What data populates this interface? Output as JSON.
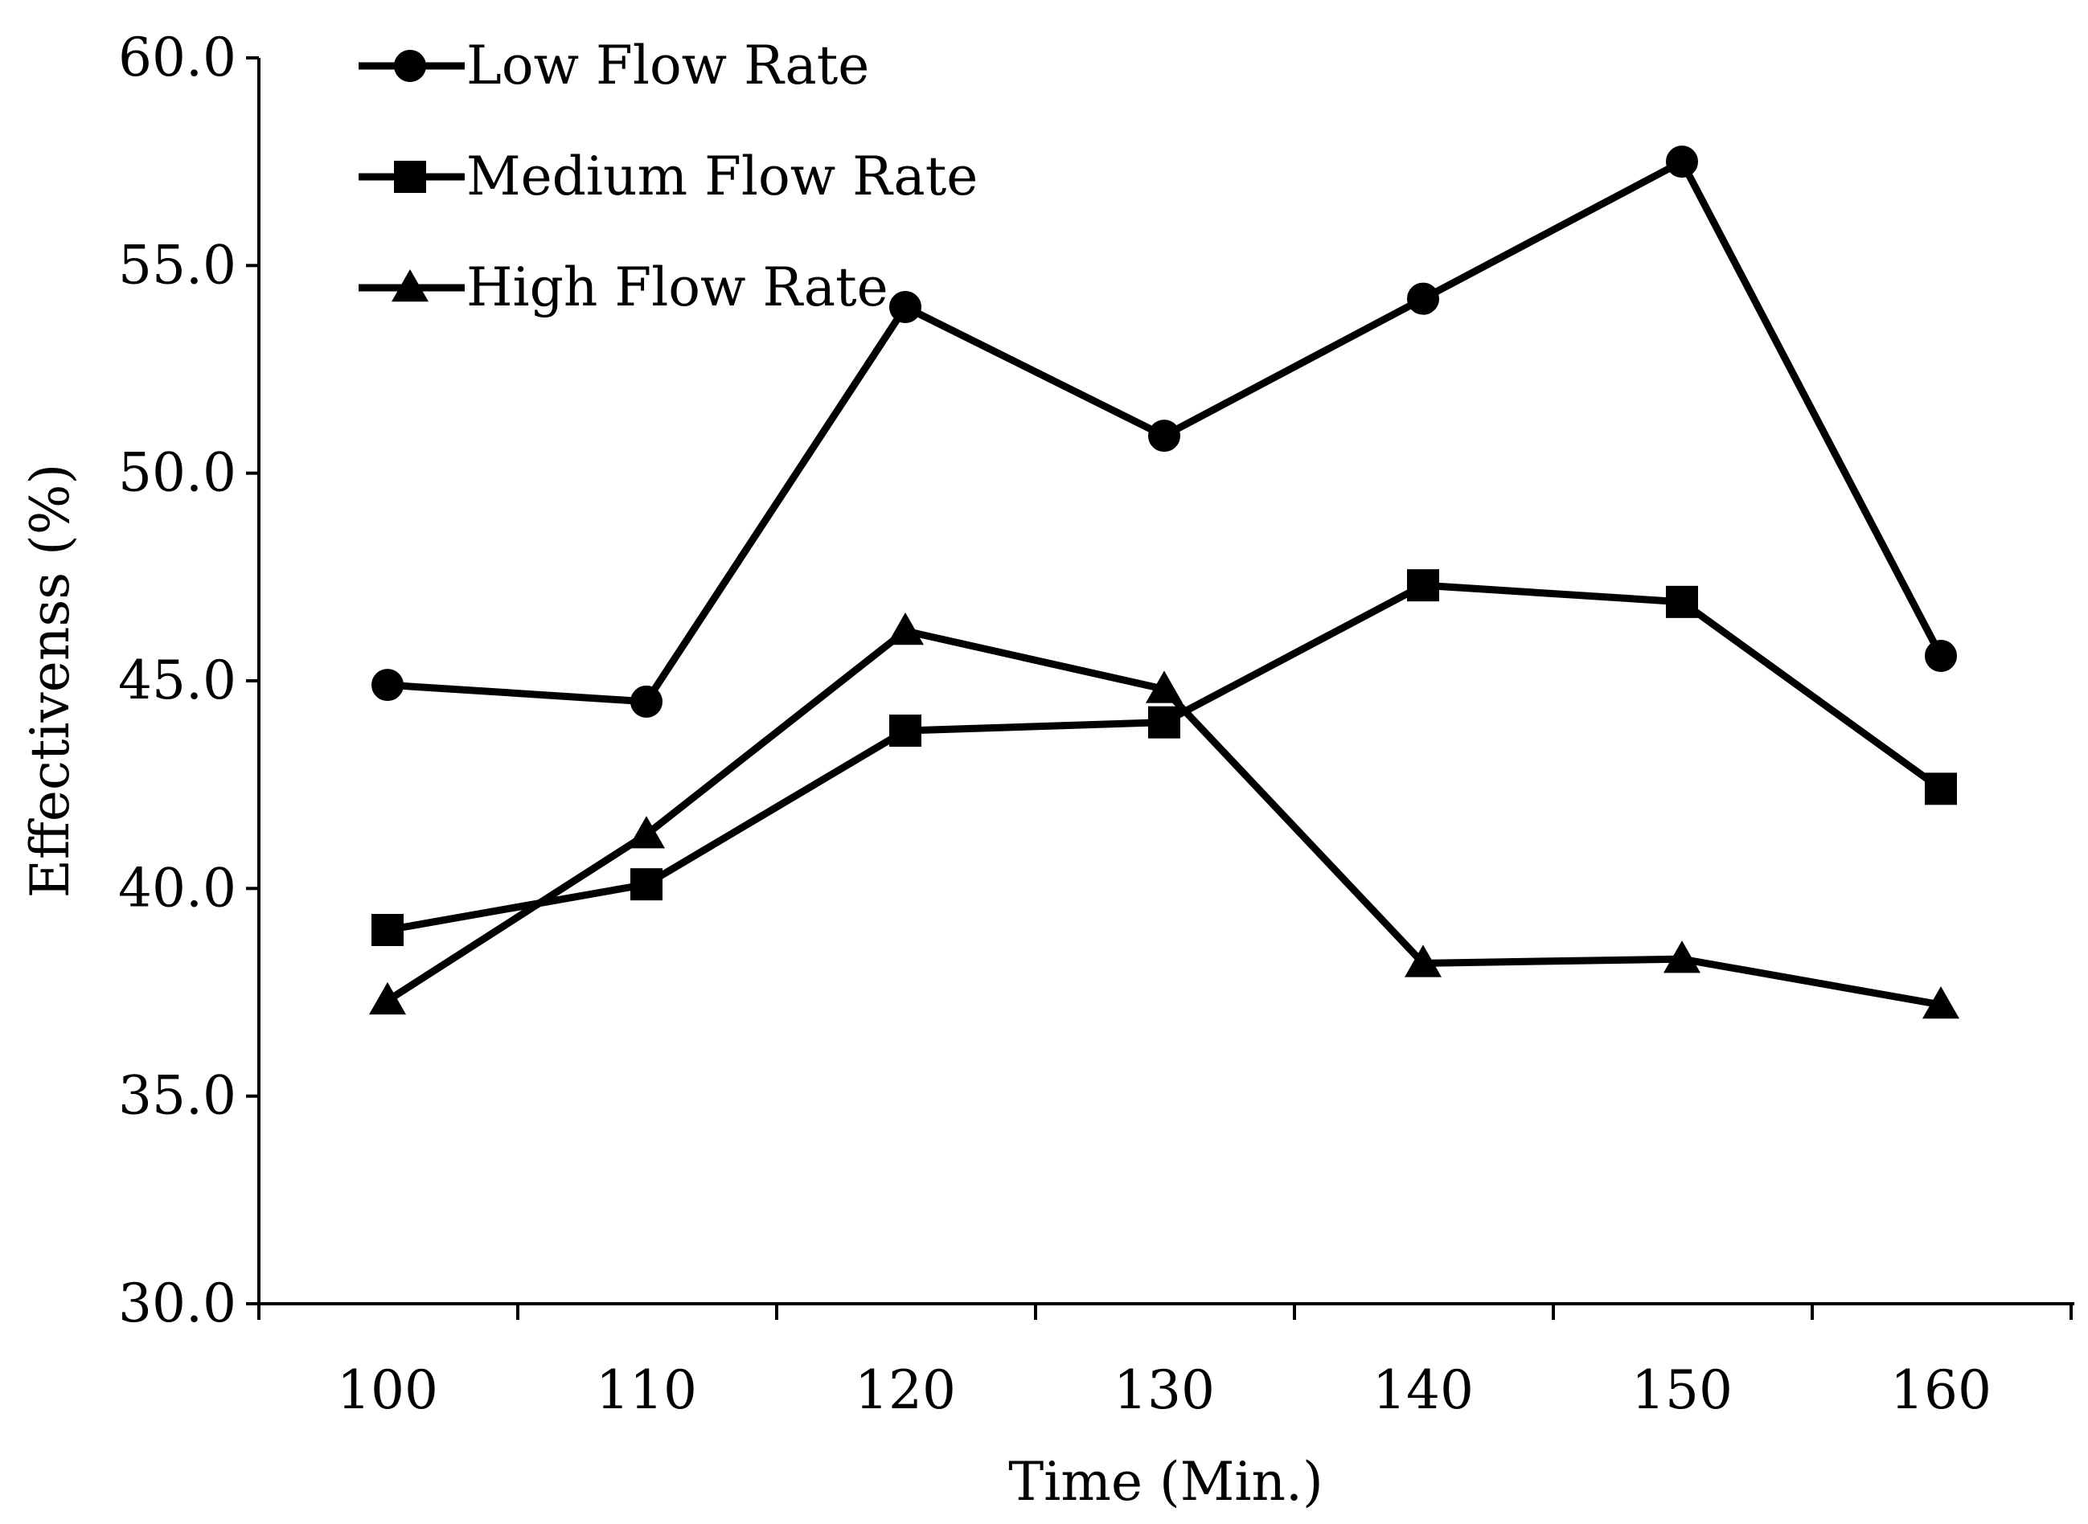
{
  "chart_data": {
    "type": "line",
    "title": "",
    "xlabel": "Time (Min.)",
    "ylabel": "Effectivenss (%)",
    "x": [
      100,
      110,
      120,
      130,
      140,
      150,
      160
    ],
    "x_tick_labels": [
      "100",
      "110",
      "120",
      "130",
      "140",
      "150",
      "160"
    ],
    "ylim": [
      30.0,
      60.0
    ],
    "y_ticks": [
      30.0,
      35.0,
      40.0,
      45.0,
      50.0,
      55.0,
      60.0
    ],
    "y_tick_labels": [
      "30.0",
      "35.0",
      "40.0",
      "45.0",
      "50.0",
      "55.0",
      "60.0"
    ],
    "grid": false,
    "legend_position": "top-left",
    "series": [
      {
        "name": "Low Flow Rate",
        "marker": "circle",
        "values": [
          44.9,
          44.5,
          54.0,
          50.9,
          54.2,
          57.5,
          45.6
        ]
      },
      {
        "name": "Medium Flow Rate",
        "marker": "square",
        "values": [
          39.0,
          40.1,
          43.8,
          44.0,
          47.3,
          46.9,
          42.4
        ]
      },
      {
        "name": "High Flow Rate",
        "marker": "triangle",
        "values": [
          37.3,
          41.3,
          46.2,
          44.8,
          38.2,
          38.3,
          37.2
        ]
      }
    ],
    "colors": {
      "line": "#000000",
      "marker": "#000000",
      "background": "#ffffff"
    }
  }
}
